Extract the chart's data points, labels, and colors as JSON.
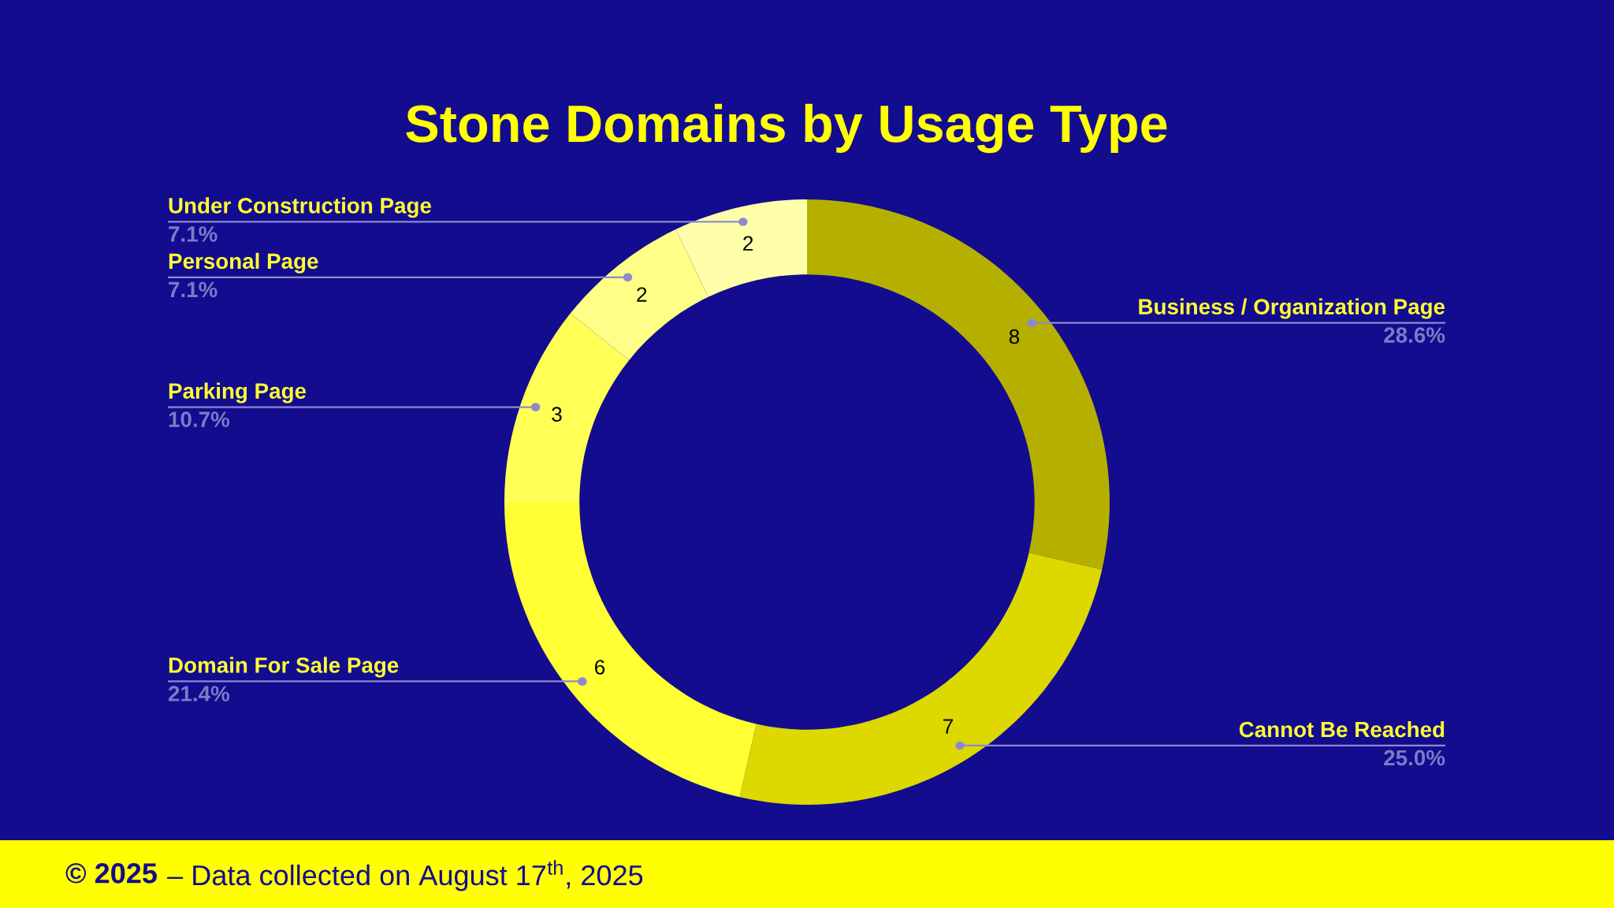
{
  "chart_data": {
    "type": "donut",
    "title": "Stone Domains by Usage Type",
    "categories": [
      "Business / Organization Page",
      "Cannot Be Reached",
      "Domain For Sale Page",
      "Parking Page",
      "Personal Page",
      "Under Construction Page"
    ],
    "values": [
      8,
      7,
      6,
      3,
      2,
      2
    ],
    "colors": [
      "#b5b000",
      "#dcd800",
      "#ffff33",
      "#ffff55",
      "#ffff88",
      "#ffffaa"
    ],
    "data_labels": true,
    "annotations": [
      "28.6%",
      "25.0%",
      "21.4%",
      "10.7%",
      "7.1%",
      "7.1%",
      "© 2025",
      "– Data collected on August 17$^{th}$, 2025"
    ]
  }
}
